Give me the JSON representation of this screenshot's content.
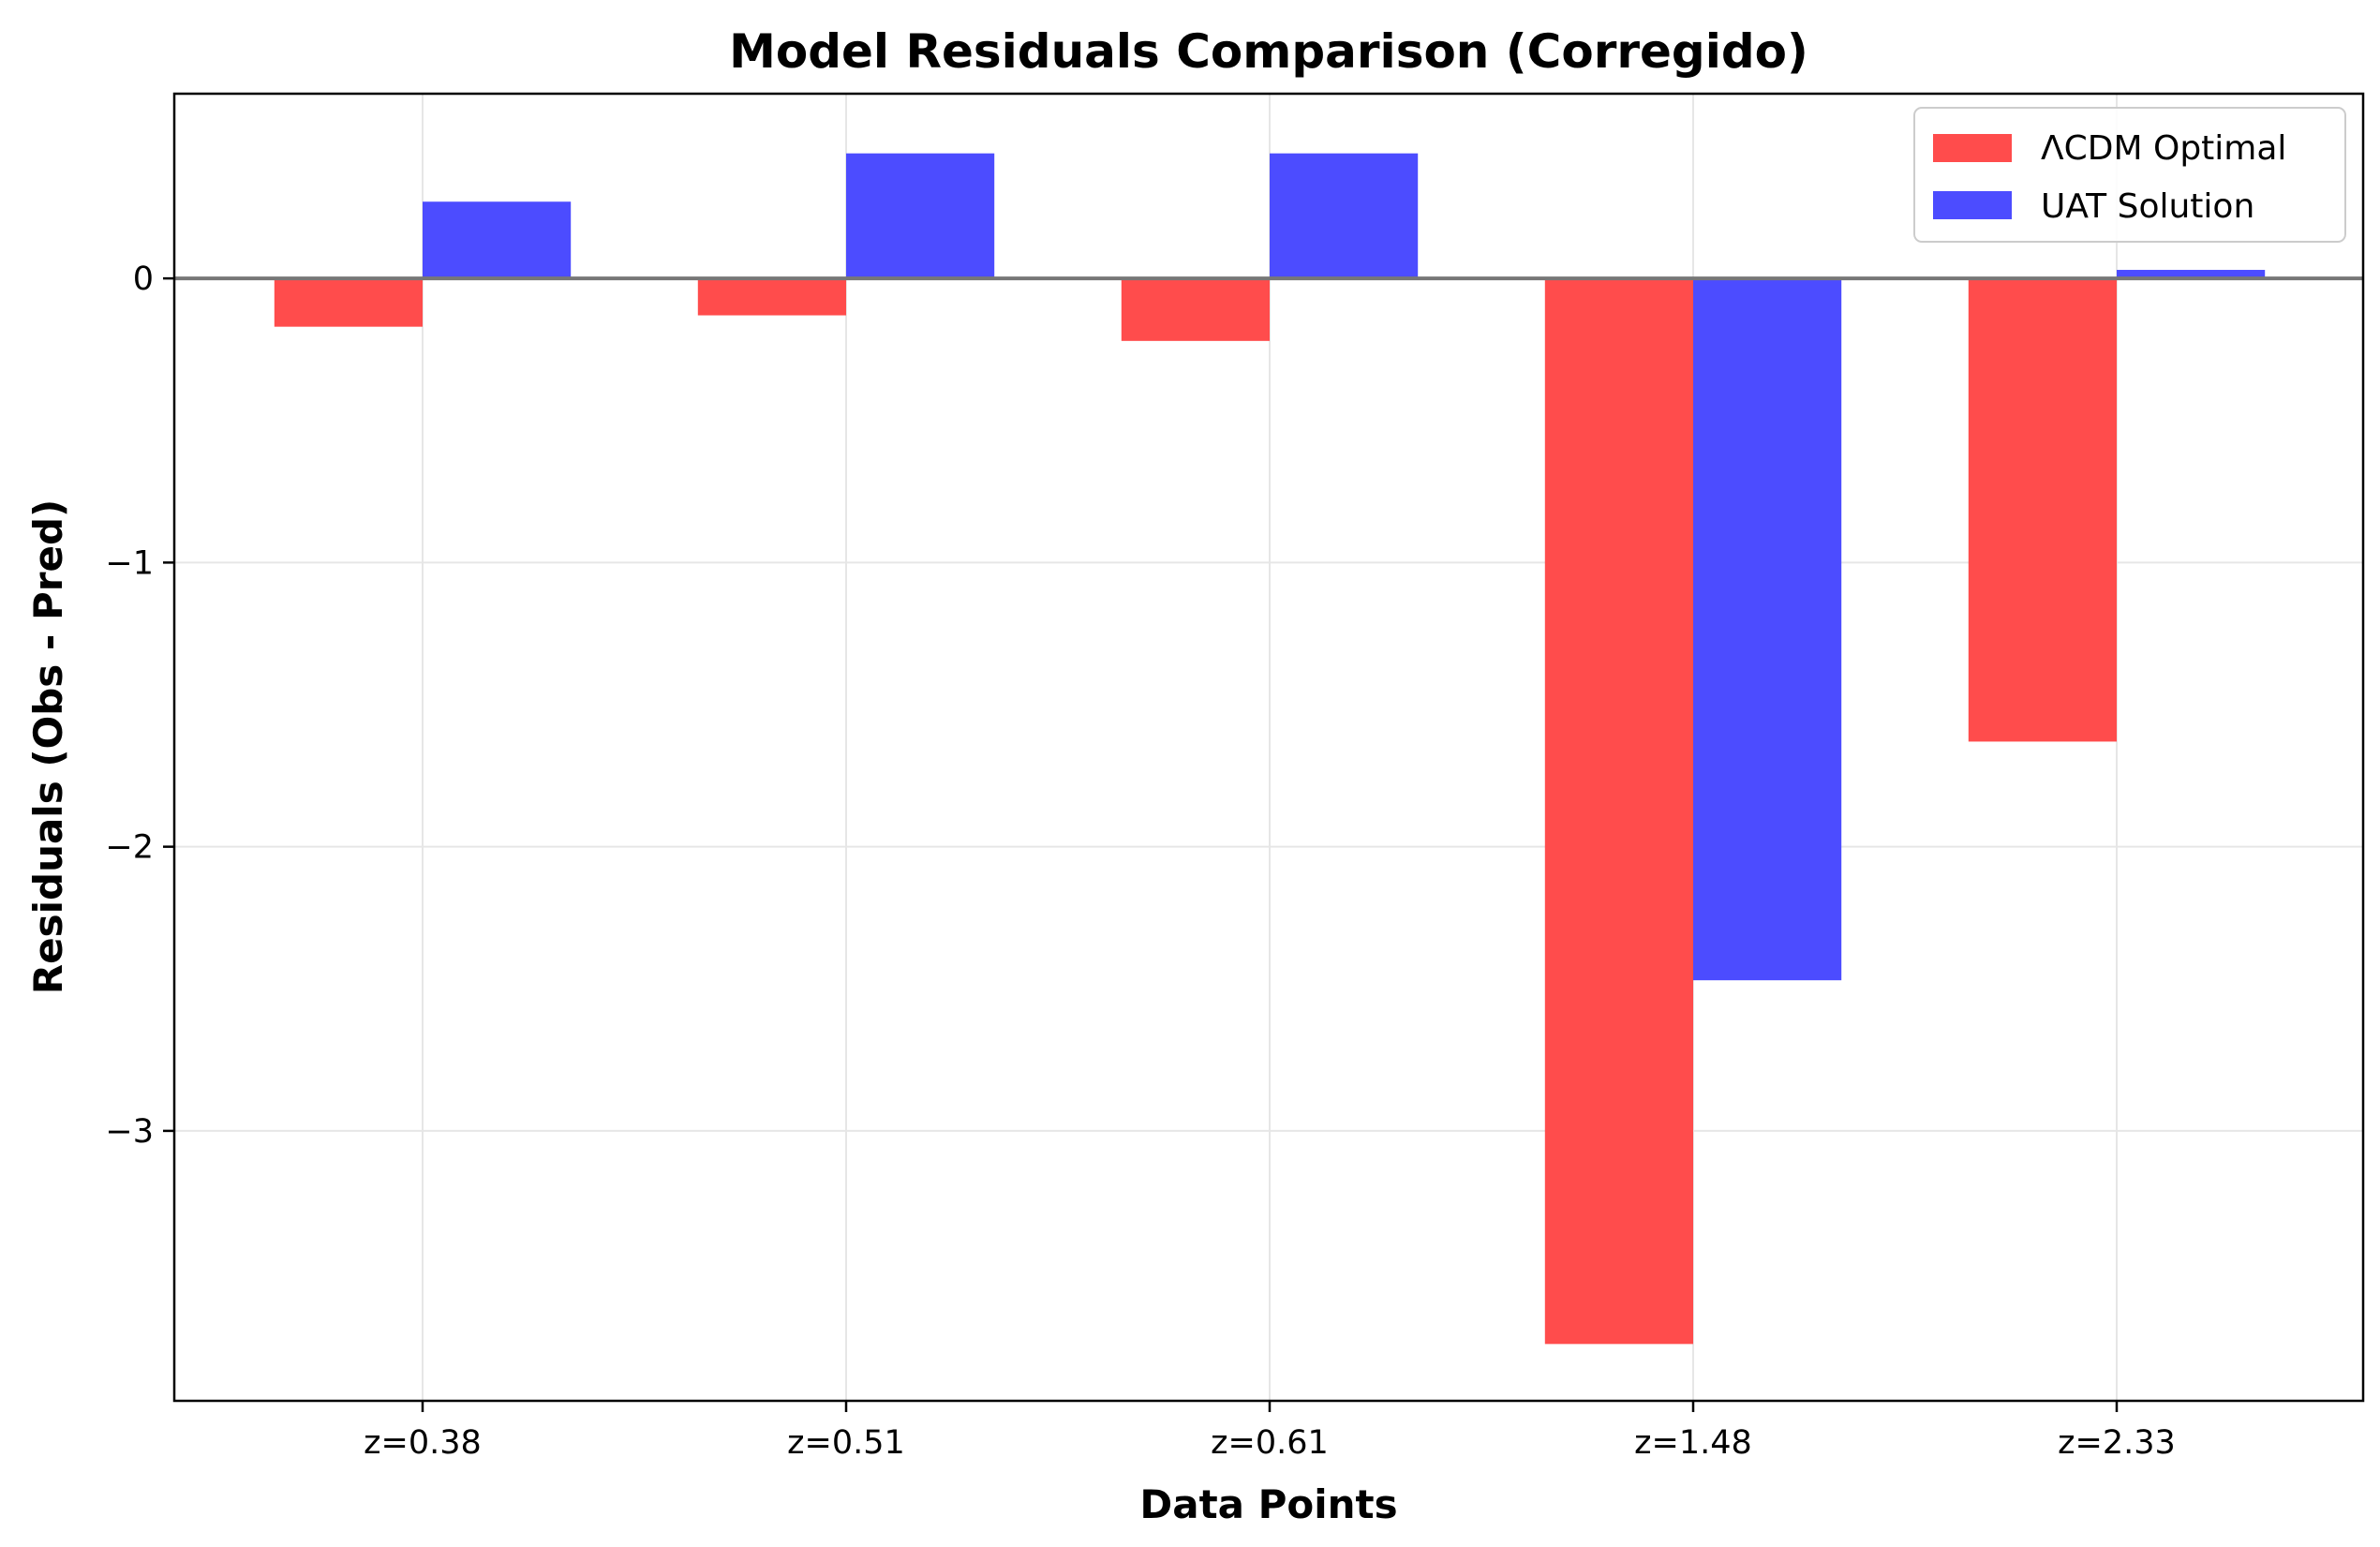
{
  "chart_data": {
    "type": "bar",
    "title": "Model Residuals Comparison (Corregido)",
    "xlabel": "Data Points",
    "ylabel": "Residuals (Obs - Pred)",
    "categories": [
      "z=0.38",
      "z=0.51",
      "z=0.61",
      "z=1.48",
      "z=2.33"
    ],
    "series": [
      {
        "name": "ΛCDM Optimal",
        "color": "#ff4c4c",
        "values": [
          -0.17,
          -0.13,
          -0.22,
          -3.75,
          -1.63
        ]
      },
      {
        "name": "UAT Solution",
        "color": "#4c4cff",
        "values": [
          0.27,
          0.44,
          0.44,
          -2.47,
          0.03
        ]
      }
    ],
    "ylim": [
      -3.95,
      0.65
    ],
    "yticks": [
      0,
      -1,
      -2,
      -3
    ],
    "ytick_labels": [
      "0",
      "−1",
      "−2",
      "−3"
    ],
    "zero_line": true,
    "grid": true,
    "legend_position": "top-right"
  }
}
